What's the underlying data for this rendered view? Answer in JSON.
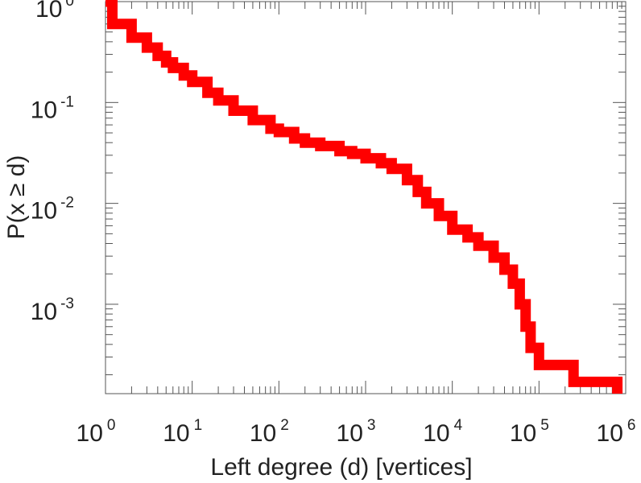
{
  "chart_data": {
    "type": "line",
    "title": "",
    "xlabel": "Left degree (d) [vertices]",
    "ylabel": "P(x ≥ d)",
    "x_scale": "log",
    "y_scale": "log",
    "xlim": [
      1,
      1000000
    ],
    "ylim": [
      0.00013,
      1.0
    ],
    "grid": false,
    "legend": "none",
    "color": "#ff0000",
    "x_ticks": [
      {
        "base": "10",
        "exp": "0",
        "value": 1
      },
      {
        "base": "10",
        "exp": "1",
        "value": 10
      },
      {
        "base": "10",
        "exp": "2",
        "value": 100
      },
      {
        "base": "10",
        "exp": "3",
        "value": 1000
      },
      {
        "base": "10",
        "exp": "4",
        "value": 10000
      },
      {
        "base": "10",
        "exp": "5",
        "value": 100000
      },
      {
        "base": "10",
        "exp": "6",
        "value": 1000000
      }
    ],
    "y_ticks": [
      {
        "base": "10",
        "exp": "0",
        "value": 1
      },
      {
        "base": "10",
        "exp": "-1",
        "value": 0.1
      },
      {
        "base": "10",
        "exp": "-2",
        "value": 0.01
      },
      {
        "base": "10",
        "exp": "-3",
        "value": 0.001
      }
    ],
    "series": [
      {
        "x": [
          1,
          1.2,
          2,
          3,
          4,
          5,
          6,
          8,
          10,
          15,
          20,
          30,
          50,
          80,
          100,
          150,
          200,
          300,
          500,
          700,
          1000,
          1500,
          2000,
          3000,
          4000,
          5000,
          7000,
          10000,
          15000,
          20000,
          30000,
          40000,
          50000,
          60000,
          70000,
          80000,
          100000,
          250000,
          800000
        ],
        "y": [
          1.0,
          0.6,
          0.44,
          0.35,
          0.29,
          0.25,
          0.22,
          0.185,
          0.16,
          0.125,
          0.105,
          0.083,
          0.067,
          0.055,
          0.051,
          0.044,
          0.04,
          0.037,
          0.033,
          0.031,
          0.028,
          0.025,
          0.022,
          0.017,
          0.013,
          0.01,
          0.0075,
          0.0055,
          0.0046,
          0.0038,
          0.0029,
          0.0022,
          0.0016,
          0.001,
          0.0006,
          0.00037,
          0.00025,
          0.00017,
          0.00013
        ]
      }
    ]
  }
}
